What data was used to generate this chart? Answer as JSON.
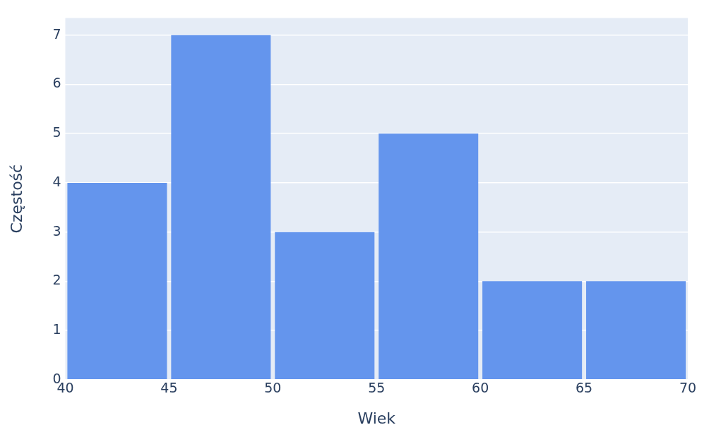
{
  "chart_data": {
    "type": "histogram",
    "xlabel": "Wiek",
    "ylabel": "Częstość",
    "bins": [
      40,
      45,
      50,
      55,
      60,
      65,
      70
    ],
    "values": [
      4,
      7,
      3,
      5,
      2,
      2
    ],
    "color": "#6495ed",
    "xlim": [
      40,
      70
    ],
    "xticks": [
      40,
      45,
      50,
      55,
      60,
      65,
      70
    ],
    "ylim": [
      0,
      7.35
    ],
    "yticks": [
      0,
      1,
      2,
      3,
      4,
      5,
      6,
      7
    ],
    "grid": "y",
    "legend": false
  }
}
